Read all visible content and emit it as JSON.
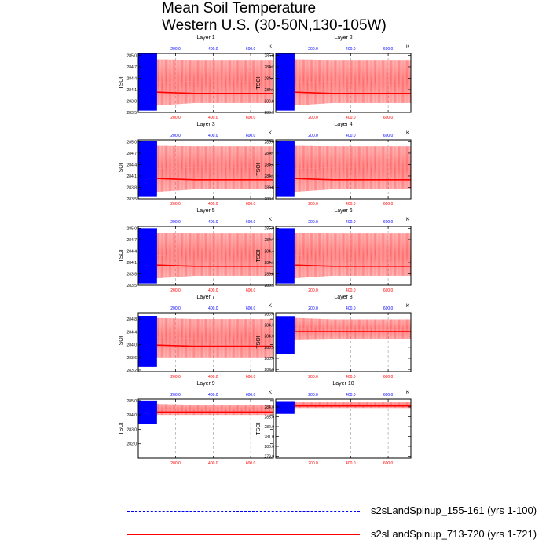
{
  "title": {
    "line1": "Mean Soil Temperature",
    "line2": "Western U.S. (30-50N,130-105W)"
  },
  "legend": [
    {
      "label": "s2sLandSpinup_155-161 (yrs 1-100)",
      "color": "#0000ff",
      "style": "dashed"
    },
    {
      "label": "s2sLandSpinup_713-720 (yrs 1-721)",
      "color": "#ff0000",
      "style": "solid"
    }
  ],
  "chart_data": {
    "type": "line",
    "variable_label": "TSOI",
    "units_label": "K",
    "x_bottom_ticks": [
      "200.0",
      "400.0",
      "600.0"
    ],
    "x_top_ticks": [
      "200.0",
      "400.0",
      "600.0"
    ],
    "x_top_color": "#0000ff",
    "x_bottom_color": "#ff0000",
    "x_range": [
      1,
      721
    ],
    "series": [
      {
        "name": "s2sLandSpinup_155-161 (yrs 1-100)",
        "color": "#0000ff",
        "x_range": [
          1,
          100
        ]
      },
      {
        "name": "s2sLandSpinup_713-720 (yrs 1-721)",
        "color": "#ff0000",
        "x_range": [
          1,
          721
        ]
      }
    ],
    "panels": [
      {
        "title": "Layer 1",
        "yticks": [
          "283.5",
          "283.8",
          "284.1",
          "284.4",
          "284.7",
          "285.0"
        ],
        "ylim": [
          283.5,
          285.05
        ],
        "blue": {
          "lo": 283.55,
          "hi": 285.05,
          "mean": 284.15
        },
        "red": {
          "lo": 283.65,
          "hi": 284.9,
          "mean": 284.05,
          "lo_end": 283.75,
          "hi_end": 284.88,
          "mean_end": 284.0
        }
      },
      {
        "title": "Layer 2",
        "yticks": [
          "283.5",
          "283.8",
          "284.1",
          "284.4",
          "284.7",
          "285.0"
        ],
        "ylim": [
          283.5,
          285.05
        ],
        "blue": {
          "lo": 283.55,
          "hi": 285.05,
          "mean": 284.15
        },
        "red": {
          "lo": 283.65,
          "hi": 284.9,
          "mean": 284.05,
          "lo_end": 283.75,
          "hi_end": 284.88,
          "mean_end": 284.0
        }
      },
      {
        "title": "Layer 3",
        "yticks": [
          "283.5",
          "283.8",
          "284.1",
          "284.4",
          "284.7",
          "285.0"
        ],
        "ylim": [
          283.5,
          285.05
        ],
        "blue": {
          "lo": 283.55,
          "hi": 285.02,
          "mean": 284.15
        },
        "red": {
          "lo": 283.65,
          "hi": 284.9,
          "mean": 284.05,
          "lo_end": 283.75,
          "hi_end": 284.88,
          "mean_end": 284.0
        }
      },
      {
        "title": "Layer 4",
        "yticks": [
          "283.5",
          "283.8",
          "284.1",
          "284.4",
          "284.7",
          "285.0"
        ],
        "ylim": [
          283.5,
          285.05
        ],
        "blue": {
          "lo": 283.55,
          "hi": 285.02,
          "mean": 284.15
        },
        "red": {
          "lo": 283.65,
          "hi": 284.9,
          "mean": 284.05,
          "lo_end": 283.75,
          "hi_end": 284.88,
          "mean_end": 284.0
        }
      },
      {
        "title": "Layer 5",
        "yticks": [
          "283.5",
          "283.8",
          "284.1",
          "284.4",
          "284.7",
          "285.0"
        ],
        "ylim": [
          283.5,
          285.05
        ],
        "blue": {
          "lo": 283.55,
          "hi": 285.0,
          "mean": 284.15
        },
        "red": {
          "lo": 283.65,
          "hi": 284.88,
          "mean": 284.05,
          "lo_end": 283.75,
          "hi_end": 284.86,
          "mean_end": 284.0
        }
      },
      {
        "title": "Layer 6",
        "yticks": [
          "283.5",
          "283.8",
          "284.1",
          "284.4",
          "284.7",
          "285.0"
        ],
        "ylim": [
          283.5,
          285.05
        ],
        "blue": {
          "lo": 283.55,
          "hi": 285.0,
          "mean": 284.15
        },
        "red": {
          "lo": 283.65,
          "hi": 284.88,
          "mean": 284.05,
          "lo_end": 283.75,
          "hi_end": 284.86,
          "mean_end": 284.0
        }
      },
      {
        "title": "Layer 7",
        "yticks": [
          "283.2",
          "283.6",
          "284.0",
          "284.4",
          "284.8"
        ],
        "ylim": [
          283.15,
          285.0
        ],
        "blue": {
          "lo": 283.3,
          "hi": 284.9,
          "mean": 284.2
        },
        "red": {
          "lo": 283.6,
          "hi": 284.85,
          "mean": 284.0,
          "lo_end": 283.6,
          "hi_end": 284.8,
          "mean_end": 283.95
        }
      },
      {
        "title": "Layer 8",
        "yticks": [
          "282.5",
          "283.0",
          "283.5",
          "284.0",
          "284.5",
          "285.0"
        ],
        "ylim": [
          282.4,
          285.05
        ],
        "blue": {
          "lo": 283.2,
          "hi": 284.9,
          "mean": 284.3
        },
        "red": {
          "lo": 283.8,
          "hi": 284.85,
          "mean": 284.2,
          "lo_end": 283.85,
          "hi_end": 284.75,
          "mean_end": 284.2
        }
      },
      {
        "title": "Layer 9",
        "yticks": [
          "282.0",
          "283.0",
          "284.0",
          "285.0"
        ],
        "ylim": [
          281.0,
          285.1
        ],
        "blue": {
          "lo": 283.4,
          "hi": 285.0,
          "mean": 284.3
        },
        "red": {
          "lo": 284.0,
          "hi": 284.8,
          "mean": 284.2,
          "lo_end": 284.0,
          "hi_end": 284.7,
          "mean_end": 284.2
        }
      },
      {
        "title": "Layer 10",
        "yticks": [
          "279.0",
          "280.0",
          "281.0",
          "282.0",
          "283.0",
          "284.0"
        ],
        "ylim": [
          278.8,
          284.8
        ],
        "blue": {
          "lo": 283.3,
          "hi": 284.6,
          "mean": 284.0
        },
        "red": {
          "lo": 283.9,
          "hi": 284.5,
          "mean": 284.1,
          "lo_end": 283.9,
          "hi_end": 284.5,
          "mean_end": 284.1
        }
      }
    ]
  }
}
